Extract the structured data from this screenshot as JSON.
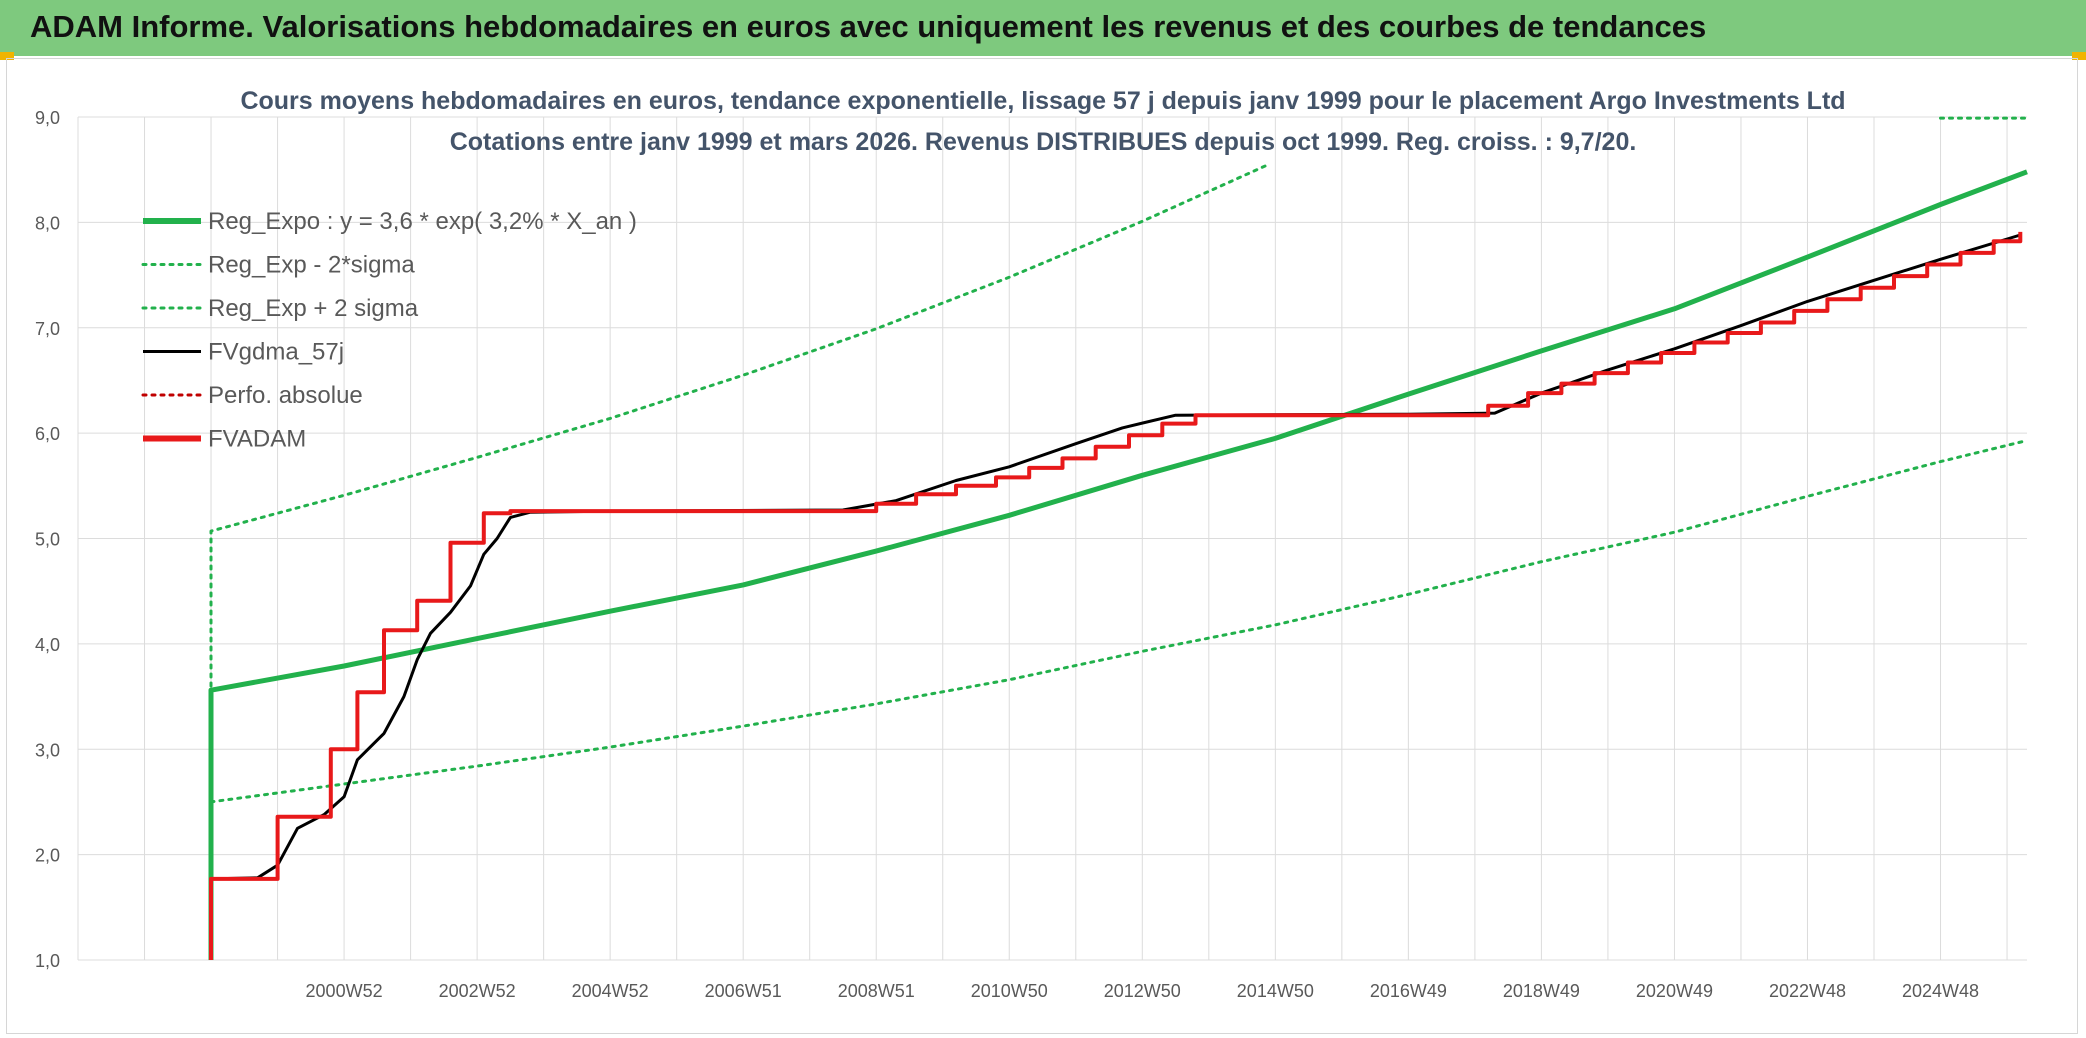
{
  "banner": {
    "title": "ADAM Informe. Valorisations hebdomadaires en euros avec uniquement les revenus et des courbes de tendances"
  },
  "chart_data": {
    "type": "line",
    "title_line1": "Cours moyens hebdomadaires en euros, tendance exponentielle, lissage 57 j depuis janv 1999 pour le placement Argo Investments Ltd",
    "title_line2": "Cotations entre janv 1999 et mars 2026. Revenus DISTRIBUES depuis oct 1999. Reg. croiss. : 9,7/20.",
    "xlabel": "",
    "ylabel": "",
    "ylim": [
      1.0,
      9.0
    ],
    "xlim": [
      1997.0,
      2026.3
    ],
    "y_ticks": [
      "1,0",
      "2,0",
      "3,0",
      "4,0",
      "5,0",
      "6,0",
      "7,0",
      "8,0",
      "9,0"
    ],
    "x_ticks": [
      {
        "year": 2001.0,
        "label": "2000W52"
      },
      {
        "year": 2003.0,
        "label": "2002W52"
      },
      {
        "year": 2005.0,
        "label": "2004W52"
      },
      {
        "year": 2007.0,
        "label": "2006W51"
      },
      {
        "year": 2009.0,
        "label": "2008W51"
      },
      {
        "year": 2011.0,
        "label": "2010W50"
      },
      {
        "year": 2013.0,
        "label": "2012W50"
      },
      {
        "year": 2015.0,
        "label": "2014W50"
      },
      {
        "year": 2017.0,
        "label": "2016W49"
      },
      {
        "year": 2019.0,
        "label": "2018W49"
      },
      {
        "year": 2021.0,
        "label": "2020W49"
      },
      {
        "year": 2023.0,
        "label": "2022W48"
      },
      {
        "year": 2025.0,
        "label": "2024W48"
      }
    ],
    "legend": [
      {
        "label": "Reg_Expo : y = 3,6 * exp( 3,2% *  X_an )",
        "color": "#22b14c",
        "style": "solid-thick"
      },
      {
        "label": "Reg_Exp - 2*sigma",
        "color": "#22b14c",
        "style": "dotted"
      },
      {
        "label": "Reg_Exp + 2 sigma",
        "color": "#22b14c",
        "style": "dotted"
      },
      {
        "label": "FVgdma_57j",
        "color": "#000000",
        "style": "solid"
      },
      {
        "label": "Perfo. absolue",
        "color": "#c00000",
        "style": "dotted"
      },
      {
        "label": "FVADAM",
        "color": "#e8191a",
        "style": "solid-thick"
      }
    ],
    "series": [
      {
        "name": "Reg_Expo",
        "color": "#22b14c",
        "points": [
          [
            1999.0,
            1.0
          ],
          [
            1999.0,
            3.56
          ],
          [
            2001,
            3.79
          ],
          [
            2003,
            4.05
          ],
          [
            2005,
            4.31
          ],
          [
            2007,
            4.56
          ],
          [
            2009,
            4.88
          ],
          [
            2011,
            5.22
          ],
          [
            2013,
            5.6
          ],
          [
            2015,
            5.95
          ],
          [
            2017,
            6.37
          ],
          [
            2019,
            6.78
          ],
          [
            2021,
            7.18
          ],
          [
            2023,
            7.67
          ],
          [
            2025,
            8.17
          ],
          [
            2026.3,
            8.48
          ]
        ]
      },
      {
        "name": "Reg_Exp - 2*sigma",
        "color": "#22b14c",
        "points": [
          [
            1999.0,
            2.5
          ],
          [
            2001,
            2.67
          ],
          [
            2003,
            2.84
          ],
          [
            2005,
            3.02
          ],
          [
            2007,
            3.22
          ],
          [
            2009,
            3.43
          ],
          [
            2011,
            3.66
          ],
          [
            2013,
            3.93
          ],
          [
            2015,
            4.18
          ],
          [
            2017,
            4.47
          ],
          [
            2019,
            4.78
          ],
          [
            2021,
            5.06
          ],
          [
            2023,
            5.4
          ],
          [
            2025,
            5.73
          ],
          [
            2026.3,
            5.93
          ]
        ]
      },
      {
        "name": "Reg_Exp + 2 sigma",
        "color": "#22b14c",
        "points": [
          [
            1999.0,
            3.6
          ],
          [
            1999.0,
            5.07
          ],
          [
            2001,
            5.41
          ],
          [
            2003,
            5.77
          ],
          [
            2005,
            6.14
          ],
          [
            2007,
            6.55
          ],
          [
            2009,
            6.99
          ],
          [
            2011,
            7.48
          ],
          [
            2013,
            8.01
          ],
          [
            2014.9,
            8.55
          ],
          [
            2015.0,
            null
          ],
          [
            2025.0,
            8.99
          ],
          [
            2026.3,
            8.99
          ]
        ]
      },
      {
        "name": "FVgdma_57j",
        "color": "#000000",
        "points": [
          [
            1999.0,
            1.77
          ],
          [
            1999.7,
            1.78
          ],
          [
            2000.0,
            1.9
          ],
          [
            2000.3,
            2.25
          ],
          [
            2000.7,
            2.38
          ],
          [
            2001.0,
            2.55
          ],
          [
            2001.2,
            2.9
          ],
          [
            2001.6,
            3.15
          ],
          [
            2001.9,
            3.5
          ],
          [
            2002.1,
            3.85
          ],
          [
            2002.3,
            4.1
          ],
          [
            2002.6,
            4.3
          ],
          [
            2002.9,
            4.55
          ],
          [
            2003.1,
            4.85
          ],
          [
            2003.3,
            5.0
          ],
          [
            2003.5,
            5.2
          ],
          [
            2003.8,
            5.25
          ],
          [
            2005,
            5.26
          ],
          [
            2008.5,
            5.27
          ],
          [
            2009.3,
            5.36
          ],
          [
            2010.2,
            5.55
          ],
          [
            2011.0,
            5.68
          ],
          [
            2012.0,
            5.9
          ],
          [
            2012.7,
            6.05
          ],
          [
            2013.5,
            6.17
          ],
          [
            2017.0,
            6.18
          ],
          [
            2018.3,
            6.19
          ],
          [
            2019.0,
            6.38
          ],
          [
            2020.0,
            6.6
          ],
          [
            2021.0,
            6.8
          ],
          [
            2022.0,
            7.02
          ],
          [
            2023.0,
            7.25
          ],
          [
            2024.0,
            7.45
          ],
          [
            2025.0,
            7.65
          ],
          [
            2026.2,
            7.88
          ]
        ]
      },
      {
        "name": "FVADAM",
        "color": "#e8191a",
        "points": [
          [
            1999.0,
            1.0
          ],
          [
            1999.0,
            1.77
          ],
          [
            2000.0,
            1.77
          ],
          [
            2000.0,
            2.36
          ],
          [
            2000.8,
            2.36
          ],
          [
            2000.8,
            3.0
          ],
          [
            2001.2,
            3.0
          ],
          [
            2001.2,
            3.54
          ],
          [
            2001.6,
            3.54
          ],
          [
            2001.6,
            4.13
          ],
          [
            2002.1,
            4.13
          ],
          [
            2002.1,
            4.41
          ],
          [
            2002.6,
            4.41
          ],
          [
            2002.6,
            4.96
          ],
          [
            2003.1,
            4.96
          ],
          [
            2003.1,
            5.24
          ],
          [
            2003.5,
            5.24
          ],
          [
            2003.5,
            5.26
          ],
          [
            2009.0,
            5.26
          ],
          [
            2009.0,
            5.33
          ],
          [
            2009.6,
            5.33
          ],
          [
            2009.6,
            5.42
          ],
          [
            2010.2,
            5.42
          ],
          [
            2010.2,
            5.5
          ],
          [
            2010.8,
            5.5
          ],
          [
            2010.8,
            5.58
          ],
          [
            2011.3,
            5.58
          ],
          [
            2011.3,
            5.67
          ],
          [
            2011.8,
            5.67
          ],
          [
            2011.8,
            5.76
          ],
          [
            2012.3,
            5.76
          ],
          [
            2012.3,
            5.87
          ],
          [
            2012.8,
            5.87
          ],
          [
            2012.8,
            5.98
          ],
          [
            2013.3,
            5.98
          ],
          [
            2013.3,
            6.09
          ],
          [
            2013.8,
            6.09
          ],
          [
            2013.8,
            6.17
          ],
          [
            2018.2,
            6.17
          ],
          [
            2018.2,
            6.26
          ],
          [
            2018.8,
            6.26
          ],
          [
            2018.8,
            6.38
          ],
          [
            2019.3,
            6.38
          ],
          [
            2019.3,
            6.47
          ],
          [
            2019.8,
            6.47
          ],
          [
            2019.8,
            6.57
          ],
          [
            2020.3,
            6.57
          ],
          [
            2020.3,
            6.67
          ],
          [
            2020.8,
            6.67
          ],
          [
            2020.8,
            6.76
          ],
          [
            2021.3,
            6.76
          ],
          [
            2021.3,
            6.86
          ],
          [
            2021.8,
            6.86
          ],
          [
            2021.8,
            6.95
          ],
          [
            2022.3,
            6.95
          ],
          [
            2022.3,
            7.05
          ],
          [
            2022.8,
            7.05
          ],
          [
            2022.8,
            7.16
          ],
          [
            2023.3,
            7.16
          ],
          [
            2023.3,
            7.27
          ],
          [
            2023.8,
            7.27
          ],
          [
            2023.8,
            7.38
          ],
          [
            2024.3,
            7.38
          ],
          [
            2024.3,
            7.49
          ],
          [
            2024.8,
            7.49
          ],
          [
            2024.8,
            7.6
          ],
          [
            2025.3,
            7.6
          ],
          [
            2025.3,
            7.71
          ],
          [
            2025.8,
            7.71
          ],
          [
            2025.8,
            7.82
          ],
          [
            2026.2,
            7.82
          ],
          [
            2026.2,
            7.91
          ]
        ]
      }
    ]
  }
}
